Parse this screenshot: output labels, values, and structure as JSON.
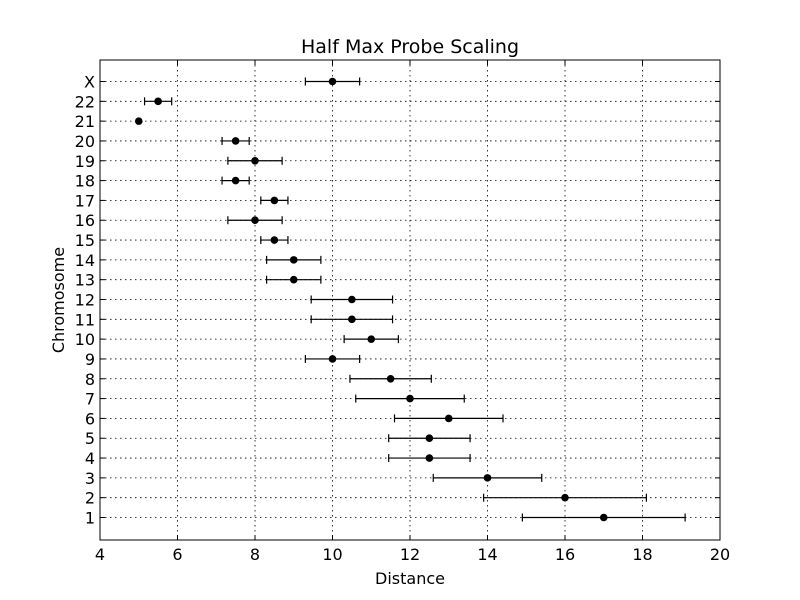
{
  "chart_data": {
    "type": "scatter",
    "title": "Half Max Probe Scaling",
    "xlabel": "Distance",
    "ylabel": "Chromosome",
    "xlim": [
      4,
      20
    ],
    "xticks": [
      4,
      6,
      8,
      10,
      12,
      14,
      16,
      18,
      20
    ],
    "grid": true,
    "categories": [
      "1",
      "2",
      "3",
      "4",
      "5",
      "6",
      "7",
      "8",
      "9",
      "10",
      "11",
      "12",
      "13",
      "14",
      "15",
      "16",
      "17",
      "18",
      "19",
      "20",
      "21",
      "22",
      "X"
    ],
    "values": [
      17,
      16,
      14,
      12.5,
      12.5,
      13,
      12,
      11.5,
      10,
      11,
      10.5,
      10.5,
      9,
      9,
      8.5,
      8,
      8.5,
      7.5,
      8,
      7.5,
      5,
      5.5,
      10
    ],
    "errors": [
      2.1,
      2.1,
      1.4,
      1.05,
      1.05,
      1.4,
      1.4,
      1.05,
      0.7,
      0.7,
      1.05,
      1.05,
      0.7,
      0.7,
      0.35,
      0.7,
      0.35,
      0.35,
      0.7,
      0.35,
      0,
      0.35,
      0.7
    ]
  }
}
